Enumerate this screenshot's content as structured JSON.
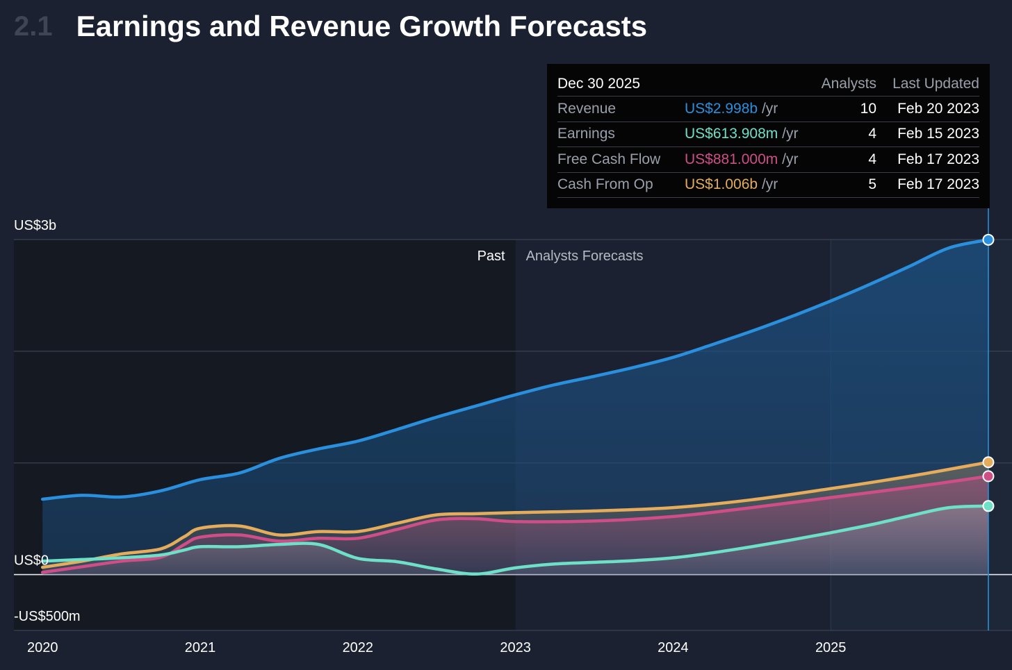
{
  "header": {
    "section_number": "2.1",
    "title": "Earnings and Revenue Growth Forecasts"
  },
  "tooltip": {
    "date": "Dec 30 2025",
    "col_analysts": "Analysts",
    "col_updated": "Last Updated",
    "rows": [
      {
        "metric": "Revenue",
        "value": "US$2.998b",
        "unit": "/yr",
        "analysts": "10",
        "updated": "Feb 20 2023",
        "color": "#2a8fdc"
      },
      {
        "metric": "Earnings",
        "value": "US$613.908m",
        "unit": "/yr",
        "analysts": "4",
        "updated": "Feb 15 2023",
        "color": "#6ee0c8"
      },
      {
        "metric": "Free Cash Flow",
        "value": "US$881.000m",
        "unit": "/yr",
        "analysts": "4",
        "updated": "Feb 17 2023",
        "color": "#cf4e88"
      },
      {
        "metric": "Cash From Op",
        "value": "US$1.006b",
        "unit": "/yr",
        "analysts": "5",
        "updated": "Feb 17 2023",
        "color": "#e5ac5c"
      }
    ]
  },
  "chart_data": {
    "type": "area",
    "region_labels": {
      "past": "Past",
      "forecast": "Analysts Forecasts"
    },
    "forecast_start": 2023,
    "highlight_start": 2025,
    "hover_x": 2026,
    "y_unit": "USD millions",
    "ylim": [
      -500,
      3000
    ],
    "yticks": [
      {
        "value": 3000,
        "label": "US$3b"
      },
      {
        "value": 0,
        "label": "US$0"
      },
      {
        "value": -500,
        "label": "-US$500m"
      }
    ],
    "gridlines": [
      3000,
      2000,
      1000,
      0,
      -500
    ],
    "xlim": [
      2019.73,
      2026.15
    ],
    "xticks": [
      {
        "value": 2020,
        "label": "2020"
      },
      {
        "value": 2021,
        "label": "2021"
      },
      {
        "value": 2022,
        "label": "2022"
      },
      {
        "value": 2023,
        "label": "2023"
      },
      {
        "value": 2024,
        "label": "2024"
      },
      {
        "value": 2025,
        "label": "2025"
      }
    ],
    "series": [
      {
        "name": "Revenue",
        "color": "#2a8fdc",
        "x": [
          2020,
          2020.25,
          2020.5,
          2020.75,
          2021,
          2021.25,
          2021.5,
          2021.75,
          2022,
          2022.25,
          2022.5,
          2022.75,
          2023,
          2023.25,
          2023.5,
          2023.75,
          2024,
          2024.25,
          2024.5,
          2024.75,
          2025,
          2025.25,
          2025.5,
          2025.75,
          2026
        ],
        "y": [
          675,
          710,
          695,
          750,
          850,
          910,
          1040,
          1125,
          1195,
          1300,
          1410,
          1510,
          1610,
          1700,
          1775,
          1855,
          1945,
          2060,
          2180,
          2310,
          2450,
          2600,
          2760,
          2925,
          2998
        ]
      },
      {
        "name": "Cash From Op",
        "color": "#e5ac5c",
        "x": [
          2020,
          2020.25,
          2020.5,
          2020.75,
          2020.9,
          2021,
          2021.25,
          2021.5,
          2021.75,
          2022,
          2022.25,
          2022.5,
          2022.75,
          2023,
          2023.5,
          2024,
          2024.5,
          2025,
          2025.5,
          2026
        ],
        "y": [
          65,
          120,
          185,
          230,
          340,
          415,
          435,
          355,
          385,
          385,
          460,
          535,
          545,
          555,
          570,
          600,
          670,
          770,
          880,
          1006
        ]
      },
      {
        "name": "Free Cash Flow",
        "color": "#cf4e88",
        "x": [
          2020,
          2020.25,
          2020.5,
          2020.75,
          2020.9,
          2021,
          2021.25,
          2021.5,
          2021.75,
          2022,
          2022.25,
          2022.5,
          2022.75,
          2023,
          2023.5,
          2024,
          2024.5,
          2025,
          2025.5,
          2026
        ],
        "y": [
          20,
          70,
          120,
          155,
          270,
          335,
          355,
          300,
          325,
          325,
          405,
          490,
          500,
          475,
          480,
          520,
          600,
          690,
          780,
          881
        ]
      },
      {
        "name": "Earnings",
        "color": "#6ee0c8",
        "x": [
          2020,
          2020.25,
          2020.5,
          2020.75,
          2020.9,
          2021,
          2021.25,
          2021.5,
          2021.75,
          2022,
          2022.25,
          2022.5,
          2022.75,
          2023,
          2023.25,
          2023.5,
          2023.75,
          2024,
          2024.25,
          2024.5,
          2024.75,
          2025,
          2025.25,
          2025.5,
          2025.75,
          2026
        ],
        "y": [
          120,
          135,
          150,
          175,
          220,
          250,
          250,
          270,
          270,
          145,
          115,
          50,
          5,
          60,
          95,
          110,
          125,
          150,
          195,
          250,
          310,
          375,
          445,
          525,
          600,
          614
        ]
      }
    ]
  }
}
